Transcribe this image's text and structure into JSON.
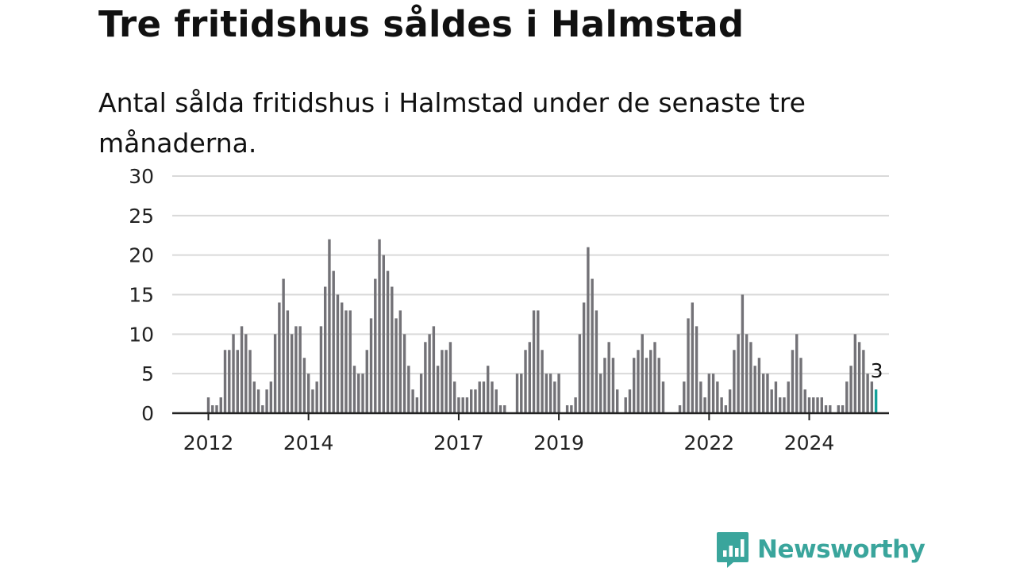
{
  "title": "Tre fritidshus såldes i Halmstad",
  "subtitle": "Antal sålda fritidshus i Halmstad under de senaste tre månaderna.",
  "brand": {
    "name": "Newsworthy",
    "color": "#3aa59c",
    "icon": "bar-chart-speech-bubble-icon"
  },
  "chart_data": {
    "type": "bar",
    "title": "",
    "xlabel": "",
    "ylabel": "",
    "ylim": [
      0,
      30
    ],
    "yticks": [
      0,
      5,
      10,
      15,
      20,
      25,
      30
    ],
    "grid": true,
    "x_tick_labels": [
      "2012",
      "2014",
      "2017",
      "2019",
      "2022",
      "2024"
    ],
    "series": [
      {
        "values": [
          2,
          1,
          1,
          2,
          8,
          8,
          10,
          8,
          11,
          10,
          8,
          4,
          3,
          1,
          3,
          4,
          10,
          14,
          17,
          13,
          10,
          11,
          11,
          7,
          5,
          3,
          4,
          11,
          16,
          22,
          18,
          15,
          14,
          13,
          13,
          6,
          5,
          5,
          8,
          12,
          17,
          22,
          20,
          18,
          16,
          12,
          13,
          10,
          6,
          3,
          2,
          5,
          9,
          10,
          11,
          6,
          8,
          8,
          9,
          4,
          2,
          2,
          2,
          3,
          3,
          4,
          4,
          6,
          4,
          3,
          1,
          1,
          0,
          0,
          5,
          5,
          8,
          9,
          13,
          13,
          8,
          5,
          5,
          4,
          5,
          0,
          1,
          1,
          2,
          10,
          14,
          21,
          17,
          13,
          5,
          7,
          9,
          7,
          3,
          0,
          2,
          3,
          7,
          8,
          10,
          7,
          8,
          9,
          7,
          4,
          0,
          0,
          0,
          1,
          4,
          12,
          14,
          11,
          4,
          2,
          5,
          5,
          4,
          2,
          1,
          3,
          8,
          10,
          15,
          10,
          9,
          6,
          7,
          5,
          5,
          3,
          4,
          2,
          2,
          4,
          8,
          10,
          7,
          3,
          2,
          2,
          2,
          2,
          1,
          1,
          0,
          1,
          1,
          4,
          6,
          10,
          9,
          8,
          5,
          4,
          3
        ],
        "color": "#737277",
        "highlight_color": "#13a09a"
      }
    ],
    "annotation": {
      "text": "3"
    }
  }
}
